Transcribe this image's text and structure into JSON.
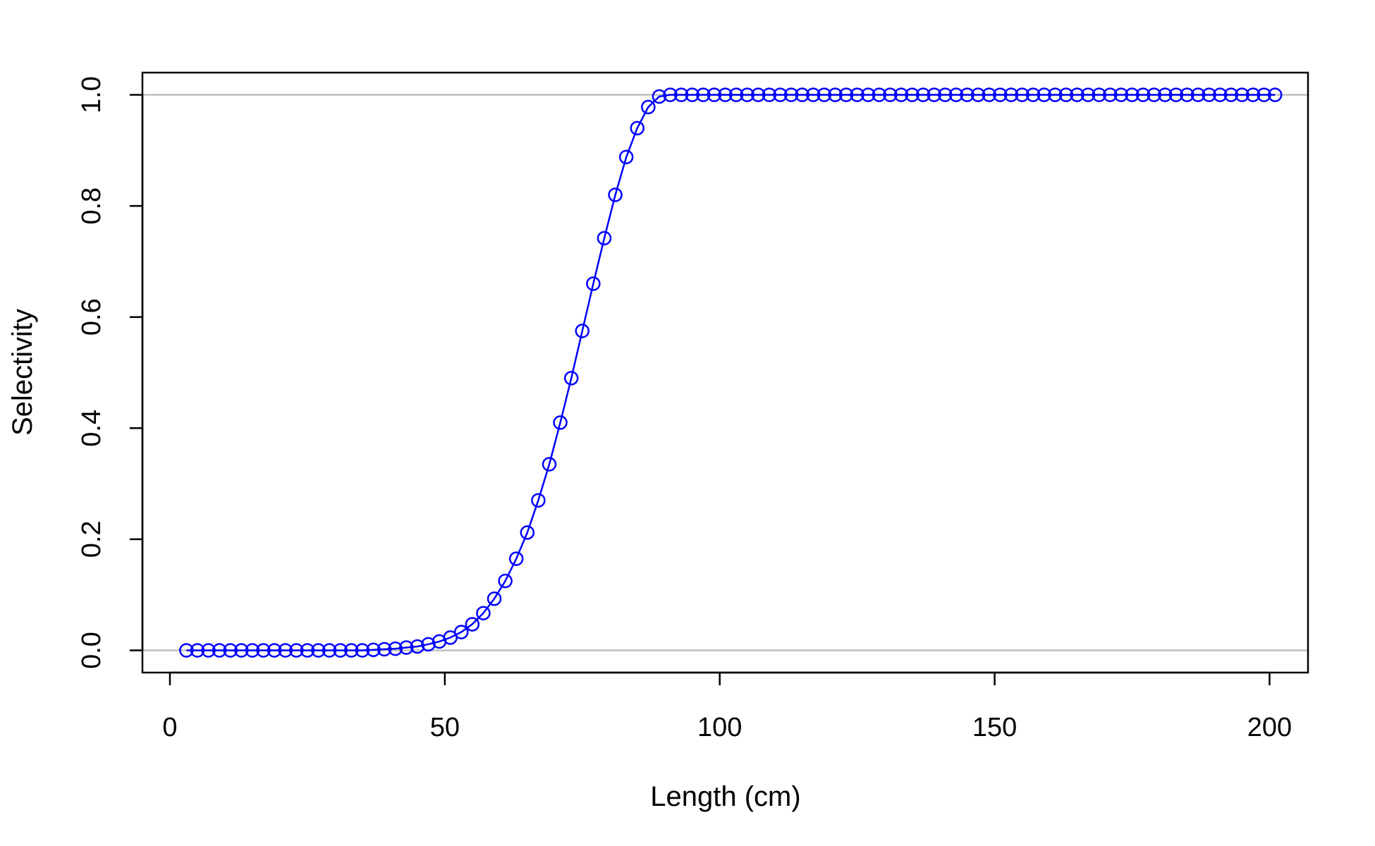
{
  "chart_data": {
    "type": "line",
    "xlabel": "Length (cm)",
    "ylabel": "Selectivity",
    "xlim": [
      -5,
      207
    ],
    "ylim": [
      -0.04,
      1.04
    ],
    "x_ticks": [
      0,
      50,
      100,
      150,
      200
    ],
    "x_tick_labels": [
      "0",
      "50",
      "100",
      "150",
      "200"
    ],
    "y_ticks": [
      0.0,
      0.2,
      0.4,
      0.6,
      0.8,
      1.0
    ],
    "y_tick_labels": [
      "0.0",
      "0.2",
      "0.4",
      "0.6",
      "0.8",
      "1.0"
    ],
    "reference_lines_y": [
      0,
      1
    ],
    "grid": false,
    "colors": {
      "series": "#0000ff",
      "reference": "#bebebe",
      "axes": "#000000"
    },
    "series": [
      {
        "marker": "open-circle",
        "x": [
          3,
          5,
          7,
          9,
          11,
          13,
          15,
          17,
          19,
          21,
          23,
          25,
          27,
          29,
          31,
          33,
          35,
          37,
          39,
          41,
          43,
          45,
          47,
          49,
          51,
          53,
          55,
          57,
          59,
          61,
          63,
          65,
          67,
          69,
          71,
          73,
          75,
          77,
          79,
          81,
          83,
          85,
          87,
          89,
          91,
          93,
          95,
          97,
          99,
          101,
          103,
          105,
          107,
          109,
          111,
          113,
          115,
          117,
          119,
          121,
          123,
          125,
          127,
          129,
          131,
          133,
          135,
          137,
          139,
          141,
          143,
          145,
          147,
          149,
          151,
          153,
          155,
          157,
          159,
          161,
          163,
          165,
          167,
          169,
          171,
          173,
          175,
          177,
          179,
          181,
          183,
          185,
          187,
          189,
          191,
          193,
          195,
          197,
          199,
          201
        ],
        "y": [
          0,
          0,
          0,
          0,
          0,
          0,
          0,
          0,
          0,
          0,
          0,
          0,
          0,
          0,
          0,
          0,
          0,
          0.001,
          0.002,
          0.003,
          0.005,
          0.007,
          0.011,
          0.016,
          0.023,
          0.033,
          0.047,
          0.067,
          0.093,
          0.125,
          0.165,
          0.212,
          0.27,
          0.335,
          0.41,
          0.49,
          0.575,
          0.66,
          0.742,
          0.82,
          0.888,
          0.94,
          0.978,
          0.997,
          1,
          1,
          1,
          1,
          1,
          1,
          1,
          1,
          1,
          1,
          1,
          1,
          1,
          1,
          1,
          1,
          1,
          1,
          1,
          1,
          1,
          1,
          1,
          1,
          1,
          1,
          1,
          1,
          1,
          1,
          1,
          1,
          1,
          1,
          1,
          1,
          1,
          1,
          1,
          1,
          1,
          1,
          1,
          1,
          1,
          1,
          1,
          1,
          1,
          1,
          1,
          1,
          1,
          1,
          1,
          1
        ]
      }
    ]
  }
}
